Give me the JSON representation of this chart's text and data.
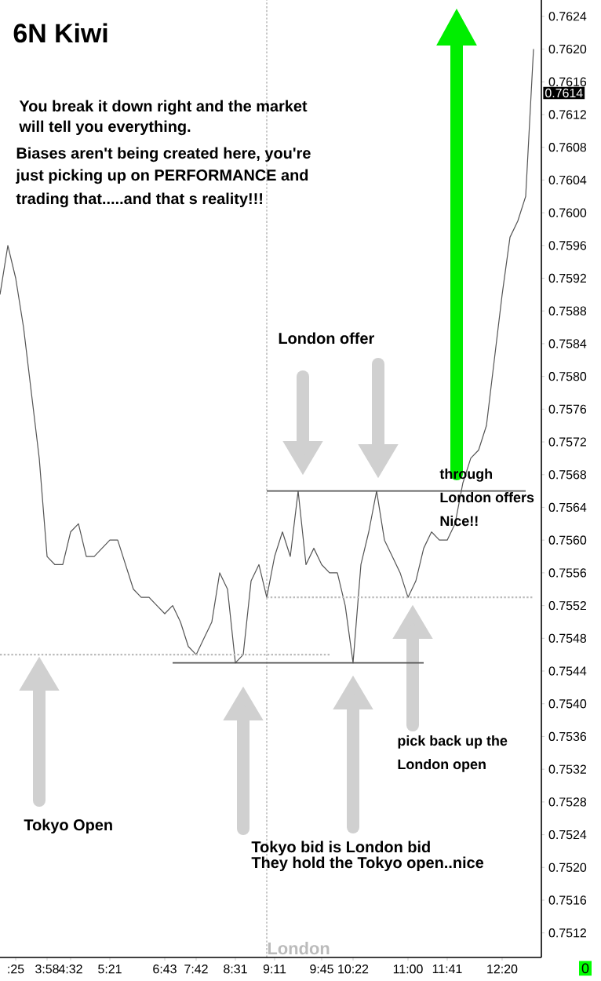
{
  "chart_data": {
    "type": "line",
    "title": "6N Kiwi",
    "categories": [
      null,
      null,
      ":25",
      null,
      null,
      null,
      "3:58",
      null,
      null,
      "4:32",
      null,
      null,
      null,
      null,
      "5:21",
      null,
      null,
      null,
      null,
      null,
      null,
      "6:43",
      null,
      null,
      null,
      "7:42",
      null,
      null,
      null,
      null,
      "8:31",
      null,
      null,
      null,
      null,
      "9:11",
      null,
      null,
      null,
      null,
      null,
      "9:45",
      null,
      null,
      null,
      "10:22",
      null,
      null,
      null,
      null,
      null,
      null,
      "11:00",
      null,
      null,
      null,
      null,
      "11:41",
      null,
      null,
      null,
      null,
      null,
      null,
      "12:20",
      null,
      null,
      null,
      null
    ],
    "ylim": [
      0.7509,
      0.7626
    ],
    "yticks": [
      0.7512,
      0.7516,
      {
        "value": 0.752,
        "label": "0.7520"
      },
      0.7524,
      0.7528,
      0.7532,
      0.7536,
      {
        "value": 0.754,
        "label": "0.7540"
      },
      0.7544,
      0.7548,
      0.7552,
      0.7556,
      {
        "value": 0.756,
        "label": "0.7560"
      },
      0.7564,
      0.7568,
      0.7572,
      0.7576,
      {
        "value": 0.758,
        "label": "0.7580"
      },
      0.7584,
      0.7588,
      0.7592,
      0.7596,
      {
        "value": 0.76,
        "label": "0.7600"
      },
      0.7604,
      0.7608,
      0.7612,
      0.7616,
      {
        "value": 0.762,
        "label": "0.7620"
      },
      0.7624
    ],
    "series": [
      {
        "color": "#555555",
        "values": [
          0.759,
          0.7596,
          0.7592,
          0.7586,
          0.7578,
          0.757,
          0.7558,
          0.7557,
          0.7557,
          0.7561,
          0.7562,
          0.7558,
          0.7558,
          0.7559,
          0.756,
          0.756,
          0.7557,
          0.7554,
          0.7553,
          0.7553,
          0.7552,
          0.7551,
          0.7552,
          0.755,
          0.7547,
          0.7546,
          0.7548,
          0.755,
          0.7556,
          0.7554,
          0.7545,
          0.7546,
          0.7555,
          0.7557,
          0.7553,
          0.7558,
          0.7561,
          0.7558,
          0.7566,
          0.7557,
          0.7559,
          0.7557,
          0.7556,
          0.7556,
          0.7552,
          0.7545,
          0.7557,
          0.7561,
          0.7566,
          0.756,
          0.7558,
          0.7556,
          0.7553,
          0.7555,
          0.7559,
          0.7561,
          0.756,
          0.756,
          0.7562,
          0.7567,
          0.757,
          0.7571,
          0.7574,
          0.7582,
          0.759,
          0.7597,
          0.7599,
          0.7602,
          0.762
        ]
      },
      {
        "color": "#555555",
        "values": [
          null,
          null,
          null,
          null,
          null,
          null,
          null,
          null,
          null,
          null,
          null,
          null,
          null,
          null,
          null,
          null,
          null,
          null,
          null,
          null,
          null,
          null,
          null,
          null,
          null,
          null,
          null,
          null,
          null,
          null,
          null,
          null,
          null,
          null,
          0.7566,
          0.7566,
          0.7566,
          0.7566,
          0.7566,
          0.7566,
          0.7566,
          0.7566,
          0.7566,
          0.7566,
          0.7566,
          0.7566,
          0.7566,
          0.7566,
          0.7566,
          0.7566,
          0.7566,
          0.7566,
          0.7566,
          0.7566,
          0.7566,
          0.7566,
          0.7566,
          0.7566,
          0.7566,
          0.7566,
          0.7566,
          0.7566,
          0.7566,
          0.7566,
          0.7566,
          0.7566,
          0.7566,
          0.7566,
          null
        ]
      },
      {
        "color": "#555555",
        "values": [
          null,
          null,
          null,
          null,
          null,
          null,
          null,
          null,
          null,
          null,
          null,
          null,
          null,
          null,
          null,
          null,
          null,
          null,
          null,
          null,
          null,
          null,
          0.7545,
          0.7545,
          0.7545,
          0.7545,
          0.7545,
          0.7545,
          0.7545,
          0.7545,
          0.7545,
          0.7545,
          0.7545,
          0.7545,
          0.7545,
          0.7545,
          0.7545,
          0.7545,
          0.7545,
          0.7545,
          0.7545,
          0.7545,
          0.7545,
          0.7545,
          0.7545,
          0.7545,
          0.7545,
          0.7545,
          0.7545,
          0.7545,
          0.7545,
          0.7545,
          0.7545,
          0.7545,
          0.7545,
          null,
          null,
          null,
          null,
          null,
          null,
          null,
          null,
          null,
          null,
          null,
          null,
          null,
          null
        ]
      },
      {
        "color": "#bbbbbb",
        "line_style": "dotted",
        "values": [
          0.7546,
          0.7546,
          0.7546,
          0.7546,
          0.7546,
          0.7546,
          0.7546,
          0.7546,
          0.7546,
          0.7546,
          0.7546,
          0.7546,
          0.7546,
          0.7546,
          0.7546,
          0.7546,
          0.7546,
          0.7546,
          0.7546,
          0.7546,
          0.7546,
          0.7546,
          0.7546,
          0.7546,
          0.7546,
          0.7546,
          0.7546,
          0.7546,
          0.7546,
          0.7546,
          0.7546,
          0.7546,
          0.7546,
          0.7546,
          0.7546,
          0.7546,
          0.7546,
          0.7546,
          0.7546,
          0.7546,
          0.7546,
          0.7546,
          0.7546,
          null,
          null,
          null,
          null,
          null,
          null,
          null,
          null,
          null,
          null,
          null,
          null,
          null,
          null,
          null,
          null,
          null,
          null,
          null,
          null,
          null,
          null,
          null,
          null,
          null,
          null
        ]
      },
      {
        "color": "#bbbbbb",
        "line_style": "dotted",
        "values": [
          null,
          null,
          null,
          null,
          null,
          null,
          null,
          null,
          null,
          null,
          null,
          null,
          null,
          null,
          null,
          null,
          null,
          null,
          null,
          null,
          null,
          null,
          null,
          null,
          null,
          null,
          null,
          null,
          null,
          null,
          null,
          null,
          null,
          null,
          0.7553,
          0.7553,
          0.7553,
          0.7553,
          0.7553,
          0.7553,
          0.7553,
          0.7553,
          0.7553,
          0.7553,
          0.7553,
          0.7553,
          0.7553,
          0.7553,
          0.7553,
          0.7553,
          0.7553,
          0.7553,
          0.7553,
          0.7553,
          0.7553,
          0.7553,
          0.7553,
          0.7553,
          0.7553,
          0.7553,
          0.7553,
          0.7553,
          0.7553,
          0.7553,
          0.7553,
          0.7553,
          0.7553,
          0.7553,
          0.7553
        ]
      }
    ],
    "annotations": [
      "You break it down right and the market",
      "will tell you everything.",
      "Biases aren't being created here, you're",
      "just picking up on PERFORMANCE and",
      "trading that.....and that s reality!!!",
      "London offer",
      "through",
      "London offers",
      "Nice!!",
      "pick back up the",
      "London open",
      "Tokyo Open",
      "Tokyo bid is London bid",
      "They hold the Tokyo open..nice",
      "0.7614",
      "0",
      "London"
    ]
  }
}
